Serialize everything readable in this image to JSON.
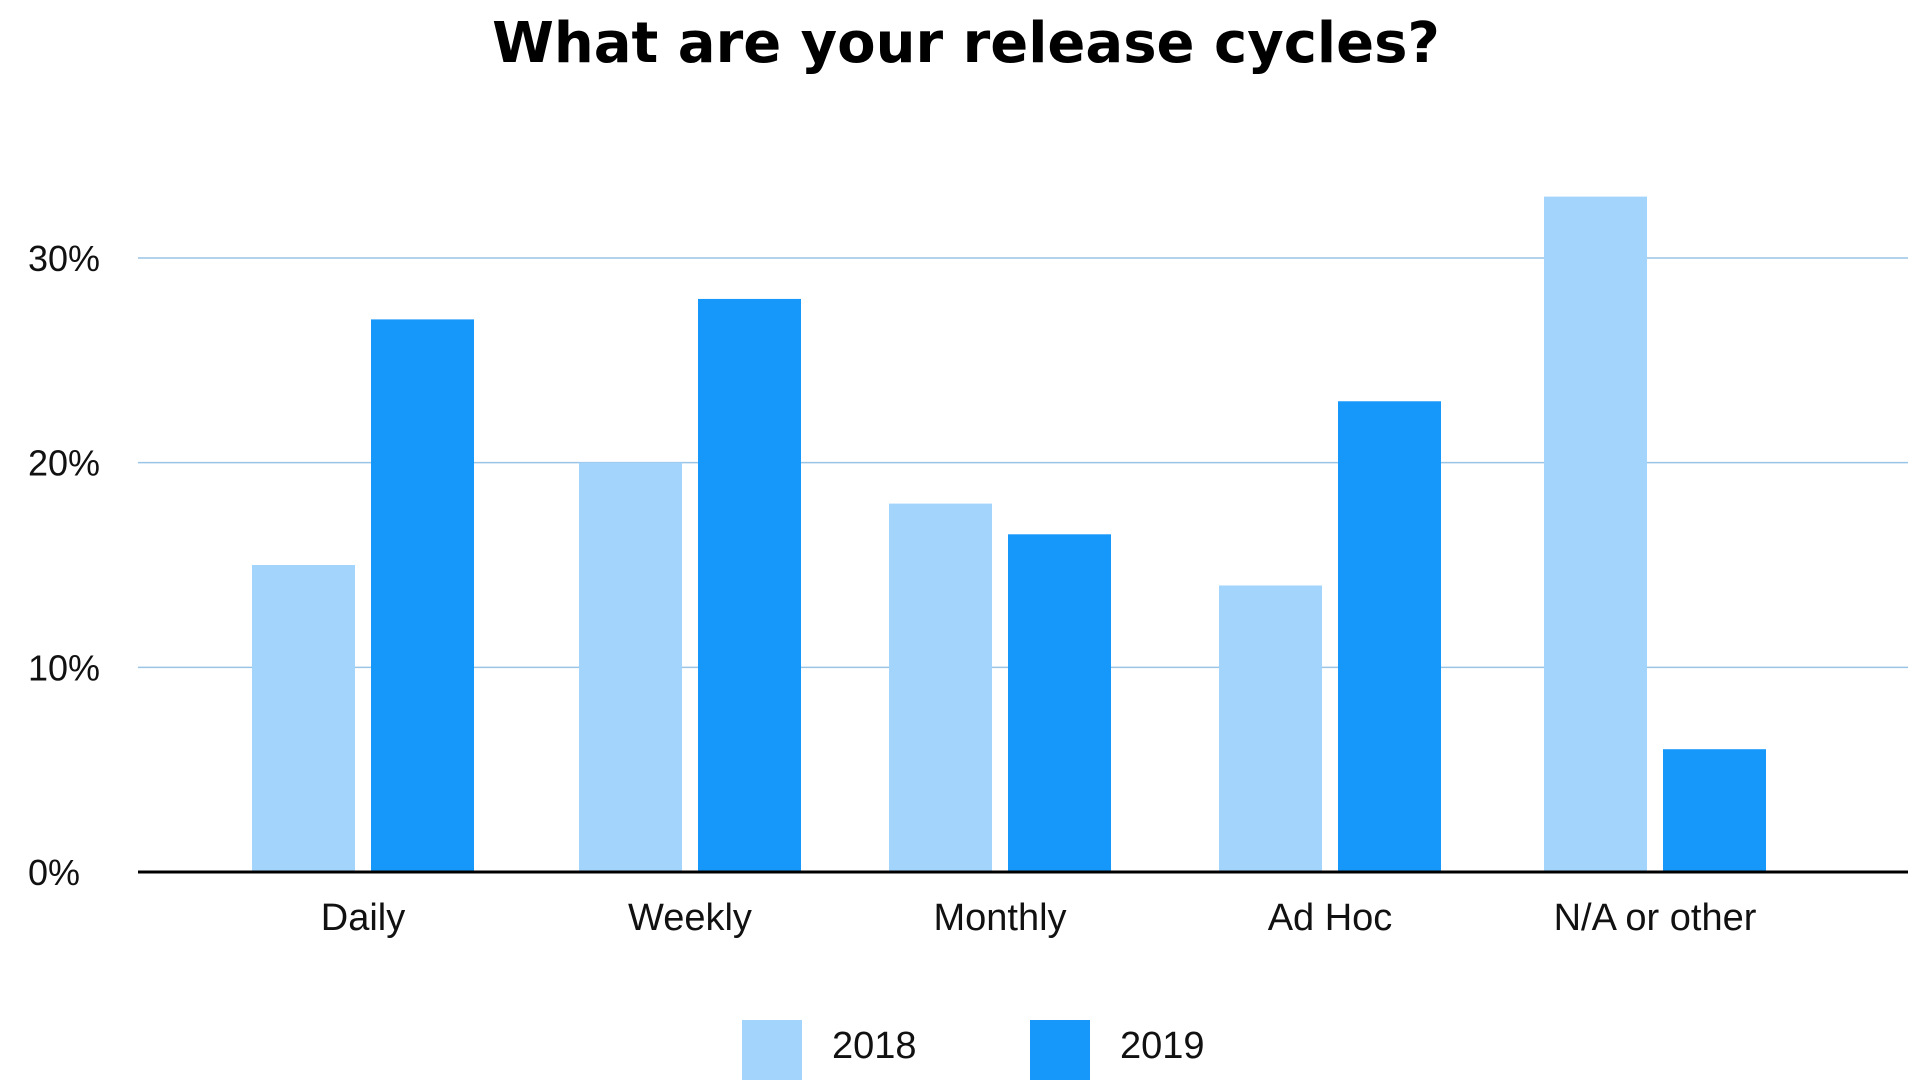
{
  "chart_data": {
    "type": "bar",
    "title": "What are your release cycles?",
    "xlabel": "",
    "ylabel": "",
    "categories": [
      "Daily",
      "Weekly",
      "Monthly",
      "Ad Hoc",
      "N/A or other"
    ],
    "series": [
      {
        "name": "2018",
        "values": [
          15,
          20,
          18,
          14,
          33
        ],
        "color": "#a3d4fc"
      },
      {
        "name": "2019",
        "values": [
          27,
          28,
          16.5,
          23,
          6
        ],
        "color": "#1697fa"
      }
    ],
    "ylim": [
      0,
      30
    ],
    "yticks": [
      0,
      10,
      20,
      30
    ],
    "ytick_labels": [
      "0%",
      "10%",
      "20%",
      "30%"
    ],
    "grid": true,
    "gridline_color": "#9ac4e6",
    "axis_color": "#000000",
    "legend_position": "bottom-center"
  }
}
